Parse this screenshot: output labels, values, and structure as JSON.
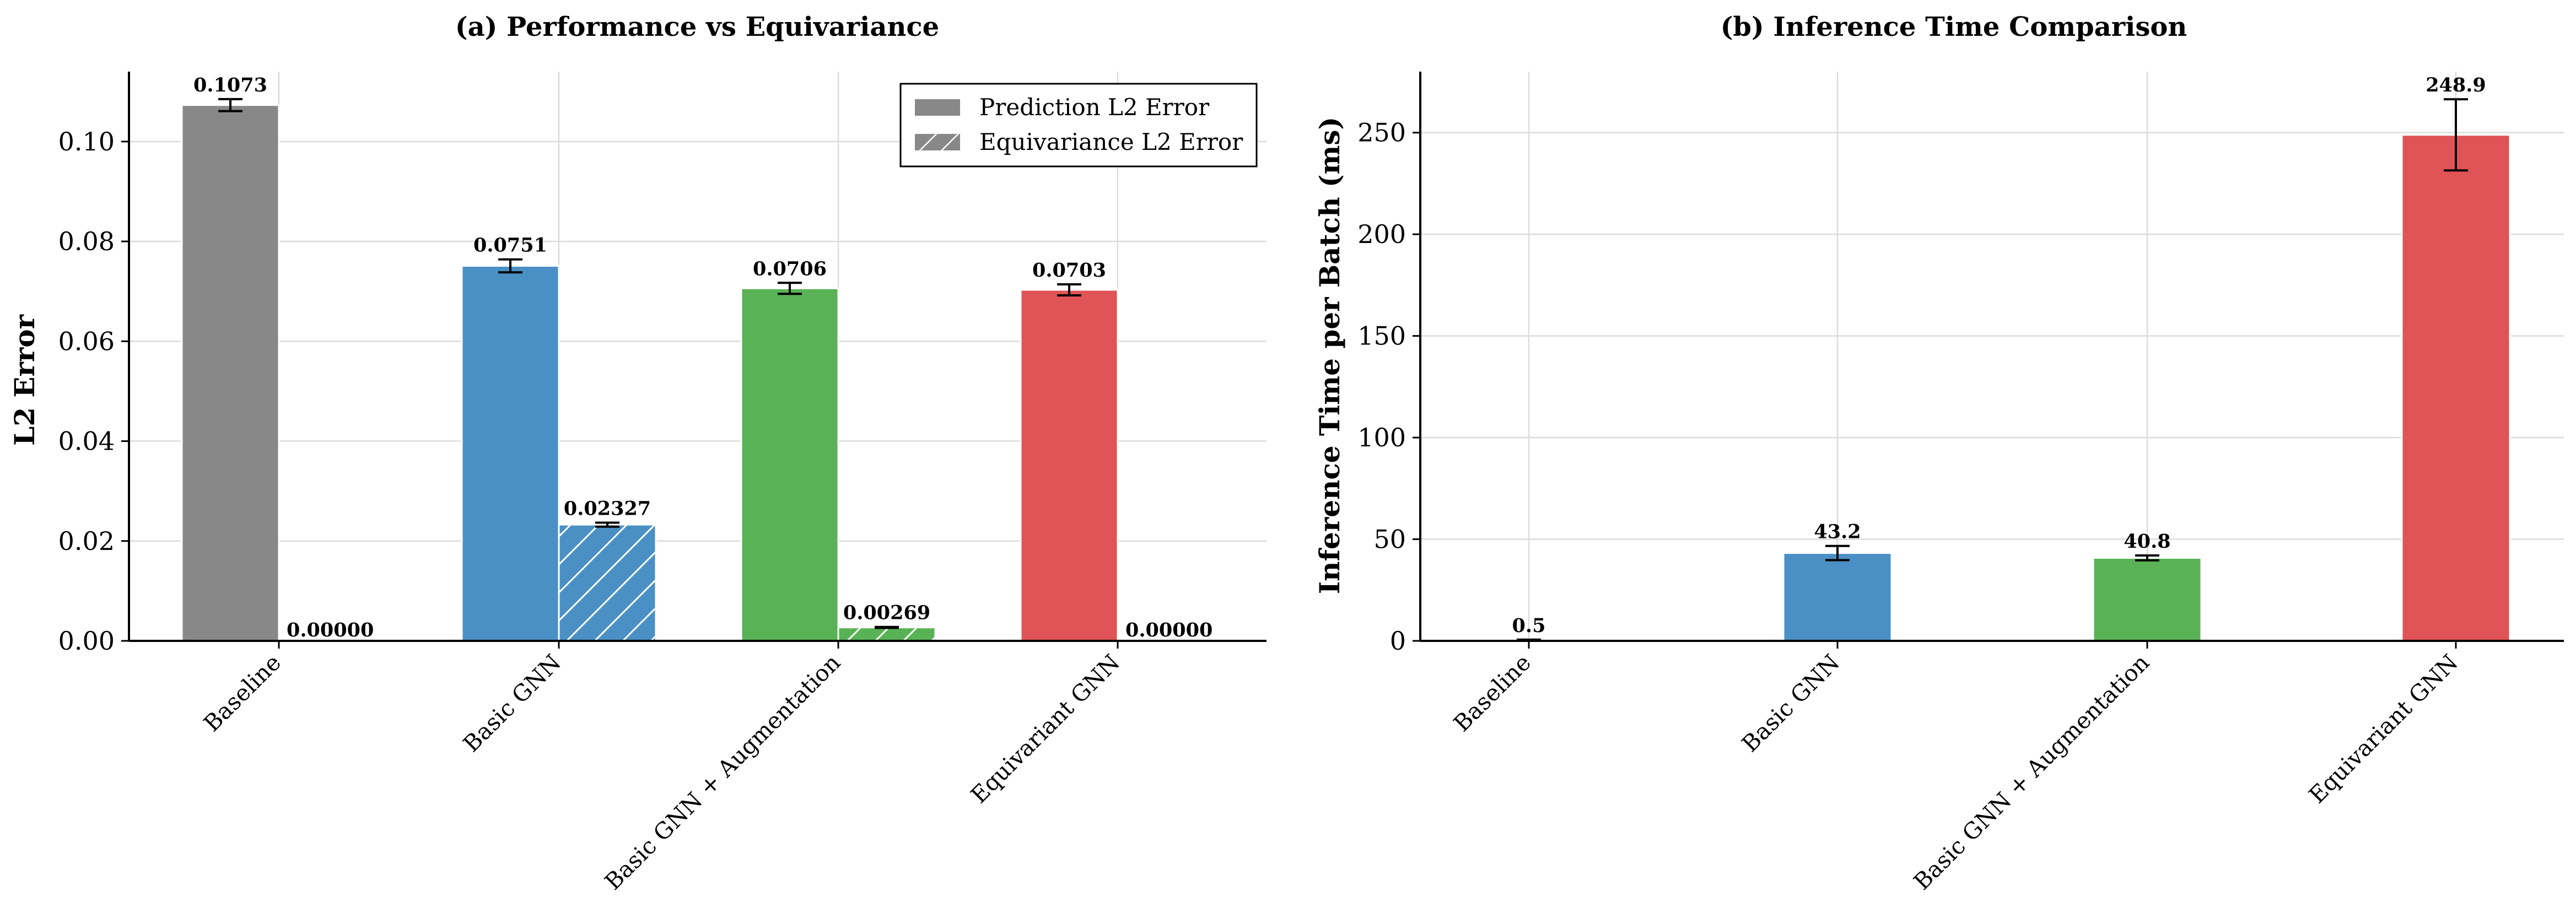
{
  "chart_data": [
    {
      "type": "bar",
      "title": "(a) Performance vs Equivariance",
      "xlabel": "",
      "ylabel": "L2 Error",
      "ylim": [
        0,
        0.114
      ],
      "yticks": [
        "0.00",
        "0.02",
        "0.04",
        "0.06",
        "0.08",
        "0.10"
      ],
      "ytick_values": [
        0,
        0.02,
        0.04,
        0.06,
        0.08,
        0.1
      ],
      "grid": true,
      "legend_position": "top-right",
      "categories": [
        "Baseline",
        "Basic GNN",
        "Basic GNN + Augmentation",
        "Equivariant GNN"
      ],
      "category_colors": [
        "#888888",
        "#4a90c4",
        "#59b356",
        "#e05356"
      ],
      "series": [
        {
          "name": "Prediction L2 Error",
          "pattern": "solid",
          "values": [
            0.1073,
            0.0751,
            0.0706,
            0.0703
          ],
          "errors": [
            0.0012,
            0.0013,
            0.0011,
            0.0011
          ],
          "labels": [
            "0.1073",
            "0.0751",
            "0.0706",
            "0.0703"
          ]
        },
        {
          "name": "Equivariance L2 Error",
          "pattern": "hatched",
          "values": [
            0.0,
            0.02327,
            0.00269,
            0.0
          ],
          "errors": [
            0,
            0.0004,
            0.0001,
            0
          ],
          "labels": [
            "0.00000",
            "0.02327",
            "0.00269",
            "0.00000"
          ]
        }
      ]
    },
    {
      "type": "bar",
      "title": "(b) Inference Time Comparison",
      "xlabel": "",
      "ylabel": "Inference Time per Batch (ms)",
      "ylim": [
        0,
        280
      ],
      "yticks": [
        "0",
        "50",
        "100",
        "150",
        "200",
        "250"
      ],
      "ytick_values": [
        0,
        50,
        100,
        150,
        200,
        250
      ],
      "grid": true,
      "categories": [
        "Baseline",
        "Basic GNN",
        "Basic GNN + Augmentation",
        "Equivariant GNN"
      ],
      "category_colors": [
        "#888888",
        "#4a90c4",
        "#59b356",
        "#e05356"
      ],
      "values": [
        0.5,
        43.2,
        40.8,
        248.9
      ],
      "errors": [
        0.1,
        3.5,
        1.2,
        17.5
      ],
      "labels": [
        "0.5",
        "43.2",
        "40.8",
        "248.9"
      ]
    }
  ]
}
